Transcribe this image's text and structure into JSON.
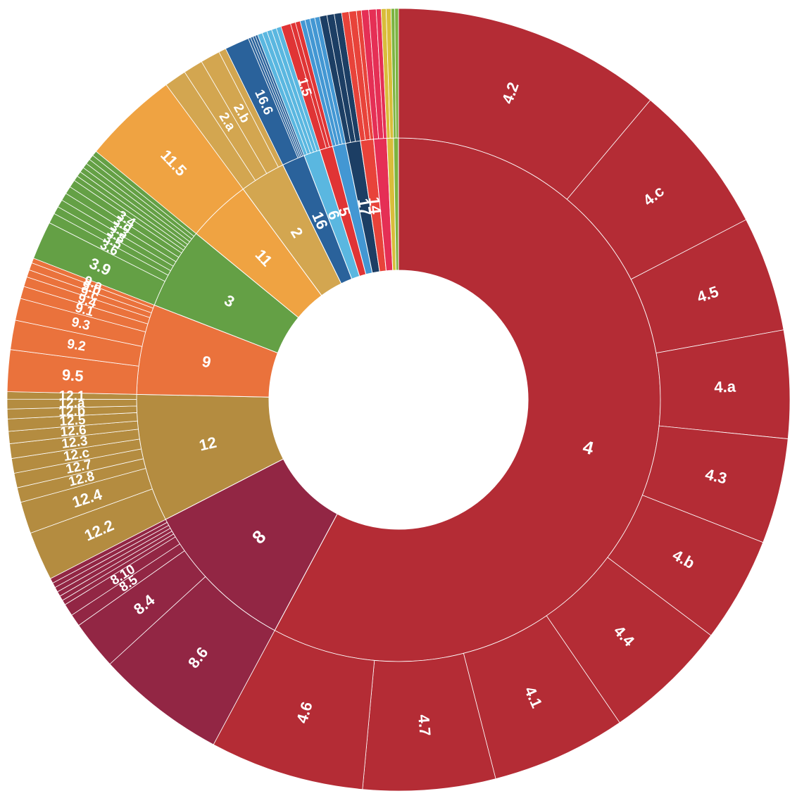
{
  "chart_data": {
    "type": "sunburst",
    "title": "",
    "unit_note": "",
    "rings": 2,
    "inner": [
      {
        "label": "4",
        "value": 57.2,
        "color": "#b42c35"
      },
      {
        "label": "8",
        "value": 9.5,
        "color": "#922644"
      },
      {
        "label": "12",
        "value": 7.8,
        "color": "#b48c40"
      },
      {
        "label": "9",
        "value": 5.5,
        "color": "#ea723c"
      },
      {
        "label": "3",
        "value": 5.0,
        "color": "#64a045"
      },
      {
        "label": "11",
        "value": 3.9,
        "color": "#efa342"
      },
      {
        "label": "2",
        "value": 2.8,
        "color": "#d3a650"
      },
      {
        "label": "16",
        "value": 1.4,
        "color": "#2a629b"
      },
      {
        "label": "6",
        "value": 1.0,
        "color": "#5ab7e0"
      },
      {
        "label": "5",
        "value": 0.8,
        "color": "#e03435"
      },
      {
        "label": "",
        "value": 0.8,
        "color": "#4397d3"
      },
      {
        "label": "17",
        "value": 0.9,
        "color": "#1c3e64"
      },
      {
        "label": "14",
        "value": 0.8,
        "color": "#e8433a"
      },
      {
        "label": "",
        "value": 0.8,
        "color": "#e52f55"
      },
      {
        "label": "",
        "value": 0.4,
        "color": "#d9bd3a"
      },
      {
        "label": "",
        "value": 0.3,
        "color": "#7cb341"
      }
    ],
    "outer": [
      {
        "parent": "4",
        "children": [
          {
            "label": "4.2",
            "value": 11.0
          },
          {
            "label": "4.c",
            "value": 6.2
          },
          {
            "label": "4.5",
            "value": 4.7
          },
          {
            "label": "4.a",
            "value": 4.4
          },
          {
            "label": "4.3",
            "value": 4.3
          },
          {
            "label": "4.b",
            "value": 4.3
          },
          {
            "label": "4.4",
            "value": 5.1
          },
          {
            "label": "4.1",
            "value": 5.5
          },
          {
            "label": "4.7",
            "value": 5.4
          },
          {
            "label": "4.6",
            "value": 6.3
          }
        ]
      },
      {
        "parent": "8",
        "children": [
          {
            "label": "8.6",
            "value": 5.3
          },
          {
            "label": "8.4",
            "value": 2.0
          },
          {
            "label": "8.5",
            "value": 0.5
          },
          {
            "label": "8.10",
            "value": 0.5
          },
          {
            "label": "",
            "value": 0.2
          },
          {
            "label": "",
            "value": 0.2
          },
          {
            "label": "",
            "value": 0.2
          },
          {
            "label": "",
            "value": 0.2
          },
          {
            "label": "",
            "value": 0.2
          },
          {
            "label": "",
            "value": 0.2
          }
        ]
      },
      {
        "parent": "12",
        "children": [
          {
            "label": "12.2",
            "value": 2.0
          },
          {
            "label": "12.4",
            "value": 1.3
          },
          {
            "label": "12.8",
            "value": 0.6
          },
          {
            "label": "12.7",
            "value": 0.6
          },
          {
            "label": "12.c",
            "value": 0.6
          },
          {
            "label": "12.3",
            "value": 0.6
          },
          {
            "label": "12.6",
            "value": 0.5
          },
          {
            "label": "12.5",
            "value": 0.5
          },
          {
            "label": "12.b",
            "value": 0.4
          },
          {
            "label": "12.a",
            "value": 0.4
          },
          {
            "label": "12.1",
            "value": 0.3
          }
        ]
      },
      {
        "parent": "9",
        "children": [
          {
            "label": "9.5",
            "value": 1.7
          },
          {
            "label": "9.2",
            "value": 1.2
          },
          {
            "label": "9.3",
            "value": 0.9
          },
          {
            "label": "9.1",
            "value": 0.5
          },
          {
            "label": "9.4",
            "value": 0.4
          },
          {
            "label": "9.c",
            "value": 0.3
          },
          {
            "label": "9.b",
            "value": 0.3
          },
          {
            "label": "9.a",
            "value": 0.2
          }
        ]
      },
      {
        "parent": "3",
        "children": [
          {
            "label": "3.9",
            "value": 1.5
          },
          {
            "label": "3.6",
            "value": 0.4
          },
          {
            "label": "3.5",
            "value": 0.3
          },
          {
            "label": "3.8",
            "value": 0.3
          },
          {
            "label": "3.3",
            "value": 0.3
          },
          {
            "label": "3.d",
            "value": 0.3
          },
          {
            "label": "3.4",
            "value": 0.3
          },
          {
            "label": "",
            "value": 0.2
          },
          {
            "label": "",
            "value": 0.2
          },
          {
            "label": "",
            "value": 0.2
          },
          {
            "label": "",
            "value": 0.2
          },
          {
            "label": "",
            "value": 0.2
          },
          {
            "label": "",
            "value": 0.2
          },
          {
            "label": "",
            "value": 0.2
          }
        ]
      },
      {
        "parent": "11",
        "children": [
          {
            "label": "11.5",
            "value": 3.9
          }
        ]
      },
      {
        "parent": "2",
        "children": [
          {
            "label": "",
            "value": 0.9
          },
          {
            "label": "2.a",
            "value": 0.8
          },
          {
            "label": "2.b",
            "value": 0.8
          },
          {
            "label": "",
            "value": 0.3
          }
        ]
      },
      {
        "parent": "16",
        "children": [
          {
            "label": "16.6",
            "value": 1.0
          },
          {
            "label": "",
            "value": 0.1
          },
          {
            "label": "",
            "value": 0.1
          },
          {
            "label": "",
            "value": 0.1
          },
          {
            "label": "",
            "value": 0.1
          }
        ]
      },
      {
        "parent": "6",
        "children": [
          {
            "label": "",
            "value": 0.2
          },
          {
            "label": "",
            "value": 0.2
          },
          {
            "label": "",
            "value": 0.2
          },
          {
            "label": "",
            "value": 0.2
          },
          {
            "label": "",
            "value": 0.2
          }
        ]
      },
      {
        "parent": "5",
        "children": [
          {
            "label": "1.5",
            "value": 0.4
          },
          {
            "label": "",
            "value": 0.2
          },
          {
            "label": "",
            "value": 0.2
          }
        ]
      },
      {
        "parent": "",
        "children": [
          {
            "label": "",
            "value": 0.2
          },
          {
            "label": "",
            "value": 0.2
          },
          {
            "label": "",
            "value": 0.2
          },
          {
            "label": "",
            "value": 0.2
          }
        ]
      },
      {
        "parent": "17",
        "children": [
          {
            "label": "",
            "value": 0.3
          },
          {
            "label": "",
            "value": 0.3
          },
          {
            "label": "",
            "value": 0.3
          }
        ]
      },
      {
        "parent": "14",
        "children": [
          {
            "label": "",
            "value": 0.3
          },
          {
            "label": "",
            "value": 0.3
          },
          {
            "label": "",
            "value": 0.2
          }
        ]
      },
      {
        "parent": "",
        "children": [
          {
            "label": "",
            "value": 0.3
          },
          {
            "label": "",
            "value": 0.3
          },
          {
            "label": "",
            "value": 0.2
          }
        ]
      },
      {
        "parent": "",
        "children": [
          {
            "label": "",
            "value": 0.2
          },
          {
            "label": "",
            "value": 0.2
          }
        ]
      },
      {
        "parent": "",
        "children": [
          {
            "label": "",
            "value": 0.15
          },
          {
            "label": "",
            "value": 0.15
          }
        ]
      }
    ]
  }
}
